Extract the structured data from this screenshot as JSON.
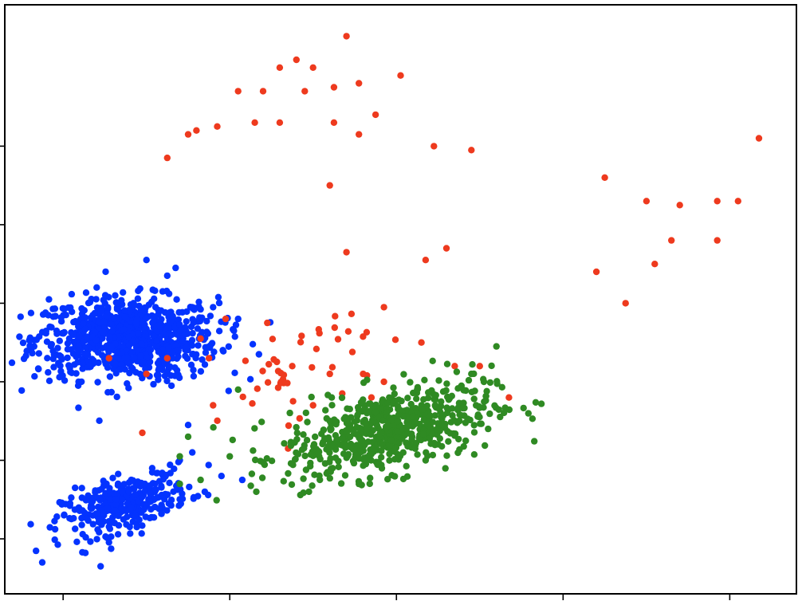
{
  "chart_data": {
    "type": "scatter",
    "title": "",
    "xlabel": "",
    "ylabel": "",
    "xlim": [
      -2.7,
      6.8
    ],
    "ylim": [
      -2.7,
      4.8
    ],
    "x_ticks": [
      -2,
      0,
      2,
      4,
      6
    ],
    "y_ticks": [
      -2,
      -1,
      0,
      1,
      2,
      3
    ],
    "tick_labels_visible": false,
    "grid": false,
    "legend": "none",
    "series": [
      {
        "color": "#0433ff",
        "clusters": [
          {
            "center": [
              -1.25,
              0.55
            ],
            "spread": [
              0.55,
              0.26
            ],
            "corr": 0.0,
            "count": 820
          },
          {
            "center": [
              -1.25,
              -1.55
            ],
            "spread": [
              0.38,
              0.2
            ],
            "corr": 0.55,
            "count": 330
          }
        ],
        "points": [
          [
            -2.25,
            -2.3
          ],
          [
            -1.55,
            -2.35
          ],
          [
            -0.7,
            -0.05
          ],
          [
            -0.5,
            -0.55
          ],
          [
            -0.45,
            -0.9
          ],
          [
            -0.6,
            -1.0
          ],
          [
            -0.3,
            -1.4
          ],
          [
            -0.1,
            -1.2
          ],
          [
            0.15,
            -1.25
          ],
          [
            0.35,
            0.35
          ],
          [
            0.1,
            0.8
          ],
          [
            -0.2,
            0.95
          ],
          [
            -0.45,
            0.95
          ],
          [
            -0.75,
            1.35
          ],
          [
            -0.65,
            1.45
          ],
          [
            -1.0,
            1.55
          ]
        ]
      },
      {
        "color": "#ee3a1e",
        "clusters": [
          {
            "center": [
              0.75,
              0.2
            ],
            "spread": [
              0.45,
              0.35
            ],
            "corr": 0.45,
            "count": 40
          }
        ],
        "points": [
          [
            1.4,
            4.4
          ],
          [
            0.8,
            4.1
          ],
          [
            0.6,
            4.0
          ],
          [
            1.0,
            4.0
          ],
          [
            0.1,
            3.7
          ],
          [
            0.4,
            3.7
          ],
          [
            0.9,
            3.7
          ],
          [
            1.25,
            3.75
          ],
          [
            1.55,
            3.8
          ],
          [
            2.05,
            3.9
          ],
          [
            -0.4,
            3.2
          ],
          [
            -0.15,
            3.25
          ],
          [
            0.3,
            3.3
          ],
          [
            0.6,
            3.3
          ],
          [
            1.25,
            3.3
          ],
          [
            1.75,
            3.4
          ],
          [
            -0.75,
            2.85
          ],
          [
            -0.5,
            3.15
          ],
          [
            2.45,
            3.0
          ],
          [
            2.9,
            2.95
          ],
          [
            4.5,
            2.6
          ],
          [
            5.0,
            2.3
          ],
          [
            5.4,
            2.25
          ],
          [
            5.85,
            2.3
          ],
          [
            6.1,
            2.3
          ],
          [
            6.35,
            3.1
          ],
          [
            5.85,
            1.8
          ],
          [
            5.3,
            1.8
          ],
          [
            2.6,
            1.7
          ],
          [
            2.35,
            1.55
          ],
          [
            1.4,
            1.65
          ],
          [
            4.4,
            1.4
          ],
          [
            4.75,
            1.0
          ],
          [
            5.1,
            1.5
          ],
          [
            2.7,
            0.2
          ],
          [
            3.0,
            0.2
          ],
          [
            1.2,
            0.1
          ],
          [
            1.6,
            0.1
          ],
          [
            1.85,
            0.0
          ],
          [
            0.75,
            0.2
          ],
          [
            -0.2,
            -0.3
          ],
          [
            -1.45,
            0.3
          ],
          [
            -1.0,
            0.1
          ],
          [
            1.0,
            -0.3
          ],
          [
            1.7,
            -0.2
          ],
          [
            2.3,
            0.5
          ],
          [
            3.35,
            -0.2
          ],
          [
            1.35,
            -0.15
          ],
          [
            1.85,
            0.95
          ],
          [
            0.7,
            -0.85
          ],
          [
            1.2,
            2.5
          ],
          [
            1.55,
            3.15
          ],
          [
            0.45,
            0.75
          ],
          [
            -0.05,
            0.8
          ],
          [
            -0.35,
            0.55
          ],
          [
            -0.75,
            0.3
          ],
          [
            -1.05,
            -0.65
          ],
          [
            -0.25,
            0.3
          ]
        ]
      },
      {
        "color": "#2f8a23",
        "clusters": [
          {
            "center": [
              1.9,
              -0.62
            ],
            "spread": [
              0.62,
              0.3
            ],
            "corr": 0.5,
            "count": 620
          }
        ],
        "points": [
          [
            -0.5,
            -0.7
          ],
          [
            -0.6,
            -0.95
          ],
          [
            -0.35,
            -1.25
          ],
          [
            -0.6,
            -1.3
          ],
          [
            1.2,
            -0.5
          ],
          [
            0.0,
            -0.95
          ],
          [
            3.2,
            0.45
          ],
          [
            3.1,
            -0.6
          ],
          [
            2.9,
            0.1
          ],
          [
            3.05,
            0.0
          ],
          [
            0.1,
            -0.1
          ],
          [
            1.55,
            -1.3
          ],
          [
            0.95,
            -1.4
          ],
          [
            2.35,
            -1.0
          ]
        ]
      }
    ]
  }
}
